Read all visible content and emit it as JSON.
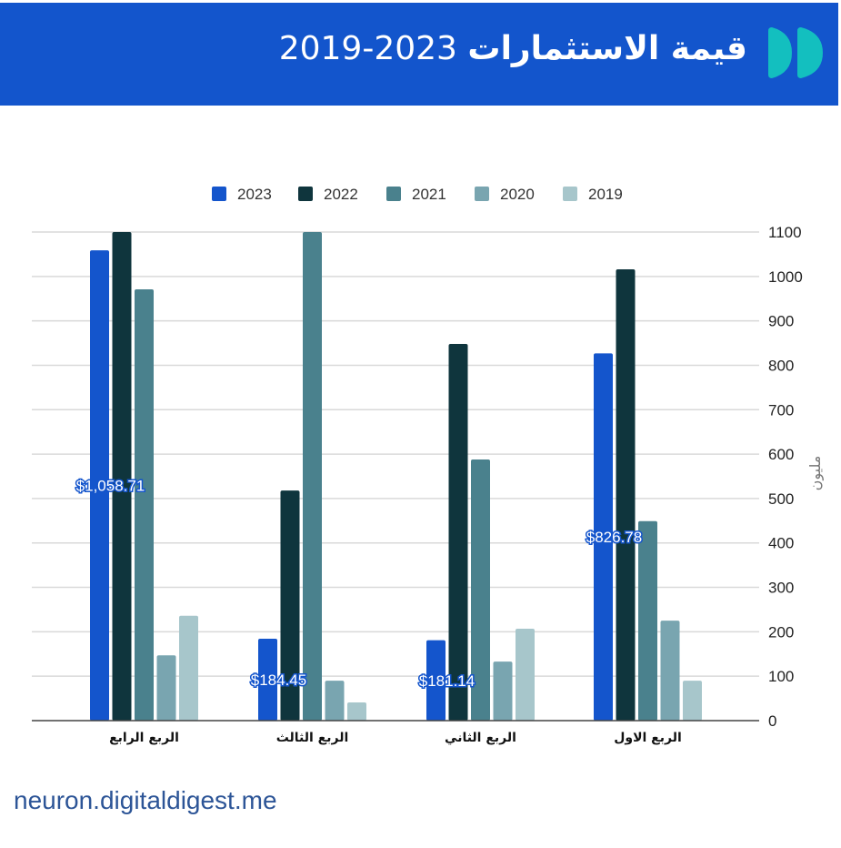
{
  "header": {
    "title_arabic": "قيمة الاستثمارات",
    "title_years": "2023-2019",
    "logo_icon": "double-d-logo-icon",
    "background_color": "#1355cc",
    "logo_color": "#13bfbf"
  },
  "footer": {
    "site": "neuron.digitaldigest.me"
  },
  "chart_data": {
    "type": "bar",
    "title": "قيمة الاستثمارات 2023-2019",
    "xlabel": "",
    "ylabel": "مليون",
    "ylim": [
      0,
      1100
    ],
    "yticks": [
      "0",
      "100",
      "200",
      "300",
      "400",
      "500",
      "600",
      "700",
      "800",
      "900",
      "1000",
      "1100"
    ],
    "grid": true,
    "legend_position": "top",
    "categories": [
      "الربع الرابع",
      "الربع الثالث",
      "الربع الثاني",
      "الربع الاول"
    ],
    "series": [
      {
        "name": "2023",
        "color": "#1455cc",
        "values": [
          1058.71,
          184.45,
          181.14,
          826.78
        ],
        "labels": [
          "$1,058.71",
          "$184.45",
          "$181.14",
          "$826.78"
        ]
      },
      {
        "name": "2022",
        "color": "#0f353d",
        "values": [
          1100,
          518,
          848,
          1016
        ]
      },
      {
        "name": "2021",
        "color": "#4a818d",
        "values": [
          971,
          1100,
          588,
          449
        ]
      },
      {
        "name": "2020",
        "color": "#79a5b0",
        "values": [
          147,
          90,
          133,
          225
        ]
      },
      {
        "name": "2019",
        "color": "#a7c6cb",
        "values": [
          236,
          41,
          207,
          90
        ]
      }
    ]
  }
}
